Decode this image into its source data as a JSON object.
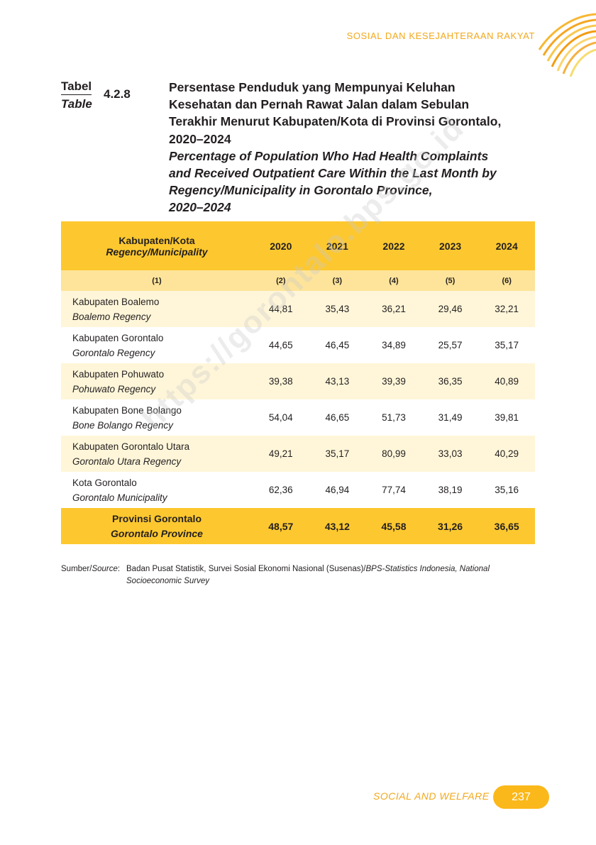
{
  "header": {
    "section": "SOSIAL DAN KESEJAHTERAAN RAKYAT"
  },
  "table_label": {
    "id": "Tabel",
    "en": "Table",
    "number": "4.2.8"
  },
  "title": {
    "id_lines": [
      "Persentase Penduduk yang Mempunyai Keluhan",
      "Kesehatan dan Pernah Rawat Jalan dalam Sebulan",
      "Terakhir Menurut Kabupaten/Kota di Provinsi Gorontalo,",
      "2020–2024"
    ],
    "en_lines": [
      "Percentage of Population Who Had Health Complaints",
      "and Received Outpatient Care Within the Last Month by",
      "Regency/Municipality in Gorontalo Province,",
      "2020–2024"
    ]
  },
  "table": {
    "header": {
      "name_id": "Kabupaten/Kota",
      "name_en": "Regency/Municipality",
      "years": [
        "2020",
        "2021",
        "2022",
        "2023",
        "2024"
      ]
    },
    "col_numbers": [
      "(1)",
      "(2)",
      "(3)",
      "(4)",
      "(5)",
      "(6)"
    ],
    "rows": [
      {
        "name_id": "Kabupaten Boalemo",
        "name_en": "Boalemo Regency",
        "values": [
          "44,81",
          "35,43",
          "36,21",
          "29,46",
          "32,21"
        ]
      },
      {
        "name_id": "Kabupaten Gorontalo",
        "name_en": "Gorontalo Regency",
        "values": [
          "44,65",
          "46,45",
          "34,89",
          "25,57",
          "35,17"
        ]
      },
      {
        "name_id": "Kabupaten Pohuwato",
        "name_en": "Pohuwato Regency",
        "values": [
          "39,38",
          "43,13",
          "39,39",
          "36,35",
          "40,89"
        ]
      },
      {
        "name_id": "Kabupaten Bone Bolango",
        "name_en": "Bone Bolango Regency",
        "values": [
          "54,04",
          "46,65",
          "51,73",
          "31,49",
          "39,81"
        ]
      },
      {
        "name_id": "Kabupaten Gorontalo Utara",
        "name_en": "Gorontalo Utara Regency",
        "values": [
          "49,21",
          "35,17",
          "80,99",
          "33,03",
          "40,29"
        ]
      },
      {
        "name_id": "Kota Gorontalo",
        "name_en": "Gorontalo Municipality",
        "values": [
          "62,36",
          "46,94",
          "77,74",
          "38,19",
          "35,16"
        ]
      }
    ],
    "total": {
      "name_id": "Provinsi Gorontalo",
      "name_en": "Gorontalo Province",
      "values": [
        "48,57",
        "43,12",
        "45,58",
        "31,26",
        "36,65"
      ]
    }
  },
  "source": {
    "label_id": "Sumber/",
    "label_en": "Source",
    "label_colon": ":",
    "text_id": "Badan Pusat Statistik, Survei Sosial Ekonomi Nasional (Susenas)/",
    "text_en": "BPS-Statistics Indonesia, National Socioeconomic Survey"
  },
  "watermark": "https://gorontalo.bps.go.id",
  "footer": {
    "section": "SOCIAL AND WELFARE",
    "page": "237"
  },
  "colors": {
    "accent": "#fdc82f",
    "accent_light": "#fde49a",
    "row_tint": "#fff6d9",
    "orange_text": "#f2a81c"
  }
}
